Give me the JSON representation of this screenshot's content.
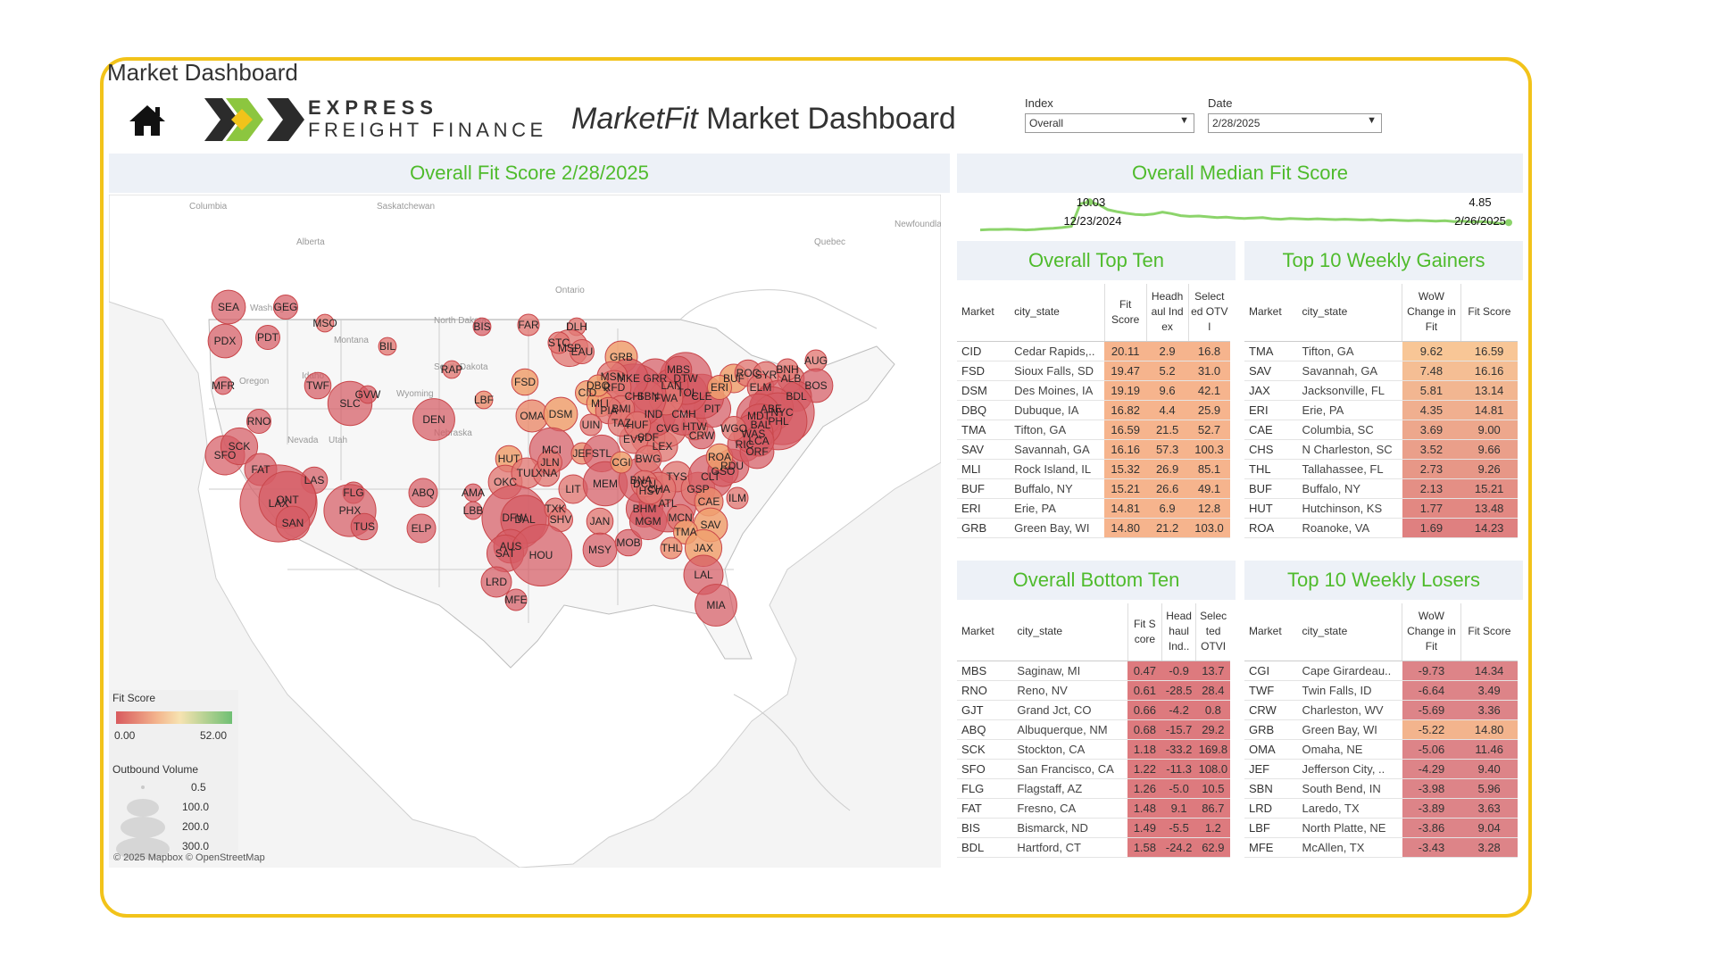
{
  "page_title": "Market Dashboard",
  "brand": {
    "line1": "EXPRESS",
    "line2": "FREIGHT FINANCE"
  },
  "dashboard_title": {
    "italic": "MarketFit",
    "rest": " Market Dashboard"
  },
  "filters": {
    "index": {
      "label": "Index",
      "value": "Overall"
    },
    "date": {
      "label": "Date",
      "value": "2/28/2025"
    }
  },
  "map": {
    "title": "Overall Fit Score 2/28/2025",
    "credit": "© 2025 Mapbox  © OpenStreetMap",
    "place_labels": [
      "Columbia",
      "Saskatchewan",
      "Alberta",
      "Quebec",
      "Newfoundland",
      "Ontario",
      "Montana",
      "North Dakota",
      "South Dakota",
      "Wyoming",
      "Nebraska",
      "Idaho",
      "Oregon",
      "Nevada",
      "Utah",
      "Washington"
    ],
    "bubbles": [
      {
        "label": "SEA",
        "score": 2.5,
        "volume": 40
      },
      {
        "label": "GEG",
        "score": 3,
        "volume": 15
      },
      {
        "label": "PDX",
        "score": 2.5,
        "volume": 40
      },
      {
        "label": "PDT",
        "score": 4,
        "volume": 15
      },
      {
        "label": "MSO",
        "score": 5,
        "volume": 5
      },
      {
        "label": "BIL",
        "score": 5,
        "volume": 5
      },
      {
        "label": "BIS",
        "score": 1.49,
        "volume": 5
      },
      {
        "label": "FAR",
        "score": 6,
        "volume": 10
      },
      {
        "label": "DLH",
        "score": 6,
        "volume": 5
      },
      {
        "label": "MFR",
        "score": 4,
        "volume": 5
      },
      {
        "label": "TWF",
        "score": 3.49,
        "volume": 20
      },
      {
        "label": "RNO",
        "score": 0.61,
        "volume": 15
      },
      {
        "label": "SLC",
        "score": 3,
        "volume": 80
      },
      {
        "label": "GVW",
        "score": 4,
        "volume": 5
      },
      {
        "label": "DEN",
        "score": 3,
        "volume": 70
      },
      {
        "label": "RAP",
        "score": 5,
        "volume": 5
      },
      {
        "label": "SFO",
        "score": 1.22,
        "volume": 60
      },
      {
        "label": "SCK",
        "score": 1.18,
        "volume": 50
      },
      {
        "label": "FAT",
        "score": 1.48,
        "volume": 35
      },
      {
        "label": "LAS",
        "score": 3,
        "volume": 20
      },
      {
        "label": "LAX",
        "score": 2.5,
        "volume": 300
      },
      {
        "label": "ONT",
        "score": 2.5,
        "volume": 150
      },
      {
        "label": "SAN",
        "score": 3,
        "volume": 40
      },
      {
        "label": "FLG",
        "score": 1.26,
        "volume": 10
      },
      {
        "label": "PHX",
        "score": 3,
        "volume": 120
      },
      {
        "label": "TUS",
        "score": 3,
        "volume": 20
      },
      {
        "label": "ABQ",
        "score": 0.68,
        "volume": 25
      },
      {
        "label": "ELP",
        "score": 3,
        "volume": 25
      },
      {
        "label": "AMA",
        "score": 4,
        "volume": 5
      },
      {
        "label": "LBB",
        "score": 4,
        "volume": 5
      },
      {
        "label": "LBF",
        "score": 9.04,
        "volume": 5
      },
      {
        "label": "FSD",
        "score": 19.47,
        "volume": 20
      },
      {
        "label": "MSP",
        "score": 5,
        "volume": 50
      },
      {
        "label": "STC",
        "score": 6,
        "volume": 10
      },
      {
        "label": "EAU",
        "score": 6,
        "volume": 15
      },
      {
        "label": "GRB",
        "score": 14.8,
        "volume": 35
      },
      {
        "label": "OMA",
        "score": 11.46,
        "volume": 35
      },
      {
        "label": "DSM",
        "score": 19.19,
        "volume": 40
      },
      {
        "label": "HUT",
        "score": 13.48,
        "volume": 20
      },
      {
        "label": "MCI",
        "score": 4,
        "volume": 80
      },
      {
        "label": "JEF",
        "score": 9.4,
        "volume": 10
      },
      {
        "label": "STL",
        "score": 4,
        "volume": 50
      },
      {
        "label": "OKC",
        "score": 5,
        "volume": 40
      },
      {
        "label": "TUL",
        "score": 5,
        "volume": 30
      },
      {
        "label": "XNA",
        "score": 5,
        "volume": 20
      },
      {
        "label": "JLN",
        "score": 6,
        "volume": 15
      },
      {
        "label": "LIT",
        "score": 5,
        "volume": 25
      },
      {
        "label": "MEM",
        "score": 4,
        "volume": 80
      },
      {
        "label": "DFW",
        "score": 2.5,
        "volume": 200
      },
      {
        "label": "DAL",
        "score": 2.5,
        "volume": 100
      },
      {
        "label": "TXK",
        "score": 5,
        "volume": 10
      },
      {
        "label": "SHV",
        "score": 5,
        "volume": 15
      },
      {
        "label": "AUS",
        "score": 3,
        "volume": 40
      },
      {
        "label": "SAT",
        "score": 3,
        "volume": 50
      },
      {
        "label": "HOU",
        "score": 3,
        "volume": 180
      },
      {
        "label": "LRD",
        "score": 3.63,
        "volume": 30
      },
      {
        "label": "MFE",
        "score": 3.28,
        "volume": 10
      },
      {
        "label": "JAN",
        "score": 5,
        "volume": 20
      },
      {
        "label": "MSY",
        "score": 4,
        "volume": 40
      },
      {
        "label": "MOB",
        "score": 4,
        "volume": 20
      },
      {
        "label": "BHM",
        "score": 4,
        "volume": 50
      },
      {
        "label": "MGM",
        "score": 4,
        "volume": 50
      },
      {
        "label": "ATL",
        "score": 3,
        "volume": 150
      },
      {
        "label": "BNA",
        "score": 4,
        "volume": 80
      },
      {
        "label": "TYS",
        "score": 5,
        "volume": 30
      },
      {
        "label": "CHA",
        "score": 5,
        "volume": 40
      },
      {
        "label": "GSP",
        "score": 5,
        "volume": 40
      },
      {
        "label": "CLT",
        "score": 3,
        "volume": 80
      },
      {
        "label": "RDU",
        "score": 4,
        "volume": 40
      },
      {
        "label": "GSO",
        "score": 4,
        "volume": 30
      },
      {
        "label": "CAE",
        "score": 9.0,
        "volume": 25
      },
      {
        "label": "ILM",
        "score": 6,
        "volume": 10
      },
      {
        "label": "SAV",
        "score": 16.16,
        "volume": 40
      },
      {
        "label": "MCN",
        "score": 5,
        "volume": 20
      },
      {
        "label": "TMA",
        "score": 16.59,
        "volume": 15
      },
      {
        "label": "THL",
        "score": 9.26,
        "volume": 10
      },
      {
        "label": "JAX",
        "score": 13.14,
        "volume": 50
      },
      {
        "label": "LAL",
        "score": 3,
        "volume": 60
      },
      {
        "label": "MIA",
        "score": 3,
        "volume": 70
      },
      {
        "label": "ROA",
        "score": 14.23,
        "volume": 20
      },
      {
        "label": "RIC",
        "score": 4,
        "volume": 40
      },
      {
        "label": "ORF",
        "score": 4,
        "volume": 40
      },
      {
        "label": "CRW",
        "score": 3.36,
        "volume": 20
      },
      {
        "label": "HTW",
        "score": 5,
        "volume": 20
      },
      {
        "label": "LEX",
        "score": 5,
        "volume": 30
      },
      {
        "label": "SDF",
        "score": 5,
        "volume": 40
      },
      {
        "label": "CVG",
        "score": 5,
        "volume": 50
      },
      {
        "label": "EVV",
        "score": 5,
        "volume": 25
      },
      {
        "label": "CGI",
        "score": 14.34,
        "volume": 10
      },
      {
        "label": "BWG",
        "score": 5,
        "volume": 20
      },
      {
        "label": "DCU",
        "score": 5,
        "volume": 20
      },
      {
        "label": "HSV",
        "score": 5,
        "volume": 20
      },
      {
        "label": "IND",
        "score": 4,
        "volume": 80
      },
      {
        "label": "CMH",
        "score": 4,
        "volume": 70
      },
      {
        "label": "PIT",
        "score": 4,
        "volume": 50
      },
      {
        "label": "CLE",
        "score": 4,
        "volume": 80
      },
      {
        "label": "TOL",
        "score": 4,
        "volume": 60
      },
      {
        "label": "DTW",
        "score": 3,
        "volume": 120
      },
      {
        "label": "GRR",
        "score": 4,
        "volume": 60
      },
      {
        "label": "LAN",
        "score": 4,
        "volume": 40
      },
      {
        "label": "MBS",
        "score": 0.47,
        "volume": 20
      },
      {
        "label": "FWA",
        "score": 5,
        "volume": 40
      },
      {
        "label": "SBN",
        "score": 5.96,
        "volume": 30
      },
      {
        "label": "CHI",
        "score": 3,
        "volume": 200
      },
      {
        "label": "MKE",
        "score": 4,
        "volume": 60
      },
      {
        "label": "MSN",
        "score": 5,
        "volume": 30
      },
      {
        "label": "RFD",
        "score": 5,
        "volume": 40
      },
      {
        "label": "CID",
        "score": 20.11,
        "volume": 15
      },
      {
        "label": "MLI",
        "score": 15.32,
        "volume": 20
      },
      {
        "label": "DBQ",
        "score": 16.82,
        "volume": 10
      },
      {
        "label": "BMI",
        "score": 5,
        "volume": 20
      },
      {
        "label": "PIA",
        "score": 5,
        "volume": 20
      },
      {
        "label": "UIN",
        "score": 5,
        "volume": 10
      },
      {
        "label": "TAZ",
        "score": 5,
        "volume": 20
      },
      {
        "label": "HUF",
        "score": 5,
        "volume": 20
      },
      {
        "label": "BUF",
        "score": 15.21,
        "volume": 25
      },
      {
        "label": "ROC",
        "score": 5,
        "volume": 20
      },
      {
        "label": "SYR",
        "score": 5,
        "volume": 20
      },
      {
        "label": "ERI",
        "score": 14.81,
        "volume": 15
      },
      {
        "label": "ELM",
        "score": 5,
        "volume": 20
      },
      {
        "label": "ALB",
        "score": 5,
        "volume": 20
      },
      {
        "label": "BNH",
        "score": 5,
        "volume": 10
      },
      {
        "label": "AUG",
        "score": 5,
        "volume": 10
      },
      {
        "label": "BOS",
        "score": 3,
        "volume": 40
      },
      {
        "label": "BDL",
        "score": 1.58,
        "volume": 30
      },
      {
        "label": "NYC",
        "score": 2.5,
        "volume": 200
      },
      {
        "label": "ABE",
        "score": 3,
        "volume": 80
      },
      {
        "label": "PHL",
        "score": 2.5,
        "volume": 150
      },
      {
        "label": "MDT",
        "score": 3,
        "volume": 80
      },
      {
        "label": "BAL",
        "score": 3,
        "volume": 70
      },
      {
        "label": "WAS",
        "score": 3,
        "volume": 60
      },
      {
        "label": "LCA",
        "score": 4,
        "volume": 30
      },
      {
        "label": "WGO",
        "score": 5,
        "volume": 15
      }
    ],
    "legend": {
      "fit_title": "Fit Score",
      "fit_min": "0.00",
      "fit_max": "52.00",
      "volume_title": "Outbound Volume",
      "volume_values": [
        "0.5",
        "100.0",
        "200.0",
        "300.0"
      ]
    }
  },
  "median": {
    "title": "Overall Median Fit Score",
    "peak": {
      "value": "10.03",
      "date": "12/23/2024"
    },
    "last": {
      "value": "4.85",
      "date": "2/26/2025"
    },
    "series": [
      3.0,
      3.1,
      3.1,
      3.2,
      3.1,
      3.0,
      3.1,
      3.3,
      3.4,
      3.6,
      3.9,
      9.6,
      10.03,
      9.4,
      8.1,
      7.6,
      7.2,
      6.9,
      6.8,
      7.0,
      7.5,
      7.1,
      6.6,
      6.4,
      6.5,
      6.3,
      6.1,
      6.2,
      6.0,
      5.9,
      6.0,
      6.1,
      5.8,
      5.7,
      5.9,
      5.8,
      5.7,
      5.8,
      5.7,
      5.6,
      5.7,
      5.6,
      5.5,
      5.6,
      5.4,
      5.5,
      5.4,
      5.3,
      5.4,
      5.3,
      5.2,
      5.3,
      5.1,
      5.2,
      5.0,
      5.1,
      4.9,
      4.6,
      4.85
    ]
  },
  "top_ten": {
    "title": "Overall Top Ten",
    "headers": [
      "Market",
      "city_state",
      "Fit Score",
      "Headh aul Ind ex",
      "Select ed OTV I"
    ],
    "rows": [
      [
        "CID",
        "Cedar Rapids,..",
        "20.11",
        "2.9",
        "16.8"
      ],
      [
        "FSD",
        "Sioux Falls, SD",
        "19.47",
        "5.2",
        "31.0"
      ],
      [
        "DSM",
        "Des Moines, IA",
        "19.19",
        "9.6",
        "42.1"
      ],
      [
        "DBQ",
        "Dubuque, IA",
        "16.82",
        "4.4",
        "25.9"
      ],
      [
        "TMA",
        "Tifton, GA",
        "16.59",
        "21.5",
        "52.7"
      ],
      [
        "SAV",
        "Savannah, GA",
        "16.16",
        "57.3",
        "100.3"
      ],
      [
        "MLI",
        "Rock Island, IL",
        "15.32",
        "26.9",
        "85.1"
      ],
      [
        "BUF",
        "Buffalo, NY",
        "15.21",
        "26.6",
        "49.1"
      ],
      [
        "ERI",
        "Erie, PA",
        "14.81",
        "6.9",
        "12.8"
      ],
      [
        "GRB",
        "Green Bay, WI",
        "14.80",
        "21.2",
        "103.0"
      ]
    ]
  },
  "gainers": {
    "title": "Top 10 Weekly Gainers",
    "headers": [
      "Market",
      "city_state",
      "WoW Change in Fit",
      "Fit Score"
    ],
    "rows": [
      [
        "TMA",
        "Tifton, GA",
        "9.62",
        "16.59"
      ],
      [
        "SAV",
        "Savannah, GA",
        "7.48",
        "16.16"
      ],
      [
        "JAX",
        "Jacksonville, FL",
        "5.81",
        "13.14"
      ],
      [
        "ERI",
        "Erie, PA",
        "4.35",
        "14.81"
      ],
      [
        "CAE",
        "Columbia, SC",
        "3.69",
        "9.00"
      ],
      [
        "CHS",
        "N Charleston, SC",
        "3.52",
        "9.66"
      ],
      [
        "THL",
        "Tallahassee, FL",
        "2.73",
        "9.26"
      ],
      [
        "BUF",
        "Buffalo, NY",
        "2.13",
        "15.21"
      ],
      [
        "HUT",
        "Hutchinson, KS",
        "1.77",
        "13.48"
      ],
      [
        "ROA",
        "Roanoke, VA",
        "1.69",
        "14.23"
      ]
    ]
  },
  "bottom_ten": {
    "title": "Overall Bottom Ten",
    "headers": [
      "Market",
      "city_state",
      "Fit S core",
      "Head haul Ind..",
      "Selec ted OTVI"
    ],
    "rows": [
      [
        "MBS",
        "Saginaw, MI",
        "0.47",
        "-0.9",
        "13.7"
      ],
      [
        "RNO",
        "Reno, NV",
        "0.61",
        "-28.5",
        "28.4"
      ],
      [
        "GJT",
        "Grand Jct, CO",
        "0.66",
        "-4.2",
        "0.8"
      ],
      [
        "ABQ",
        "Albuquerque, NM",
        "0.68",
        "-15.7",
        "29.2"
      ],
      [
        "SCK",
        "Stockton, CA",
        "1.18",
        "-33.2",
        "169.8"
      ],
      [
        "SFO",
        "San Francisco, CA",
        "1.22",
        "-11.3",
        "108.0"
      ],
      [
        "FLG",
        "Flagstaff, AZ",
        "1.26",
        "-5.0",
        "10.5"
      ],
      [
        "FAT",
        "Fresno, CA",
        "1.48",
        "9.1",
        "86.7"
      ],
      [
        "BIS",
        "Bismarck, ND",
        "1.49",
        "-5.5",
        "1.2"
      ],
      [
        "BDL",
        "Hartford, CT",
        "1.58",
        "-24.2",
        "62.9"
      ]
    ]
  },
  "losers": {
    "title": "Top 10 Weekly Losers",
    "headers": [
      "Market",
      "city_state",
      "WoW Change in Fit",
      "Fit Score"
    ],
    "rows": [
      [
        "CGI",
        "Cape Girardeau..",
        "-9.73",
        "14.34"
      ],
      [
        "TWF",
        "Twin Falls, ID",
        "-6.64",
        "3.49"
      ],
      [
        "CRW",
        "Charleston, WV",
        "-5.69",
        "3.36"
      ],
      [
        "GRB",
        "Green Bay, WI",
        "-5.22",
        "14.80"
      ],
      [
        "OMA",
        "Omaha, NE",
        "-5.06",
        "11.46"
      ],
      [
        "JEF",
        "Jefferson City, ..",
        "-4.29",
        "9.40"
      ],
      [
        "SBN",
        "South Bend, IN",
        "-3.98",
        "5.96"
      ],
      [
        "LRD",
        "Laredo, TX",
        "-3.89",
        "3.63"
      ],
      [
        "LBF",
        "North Platte, NE",
        "-3.86",
        "9.04"
      ],
      [
        "MFE",
        "McAllen, TX",
        "-3.43",
        "3.28"
      ]
    ]
  }
}
